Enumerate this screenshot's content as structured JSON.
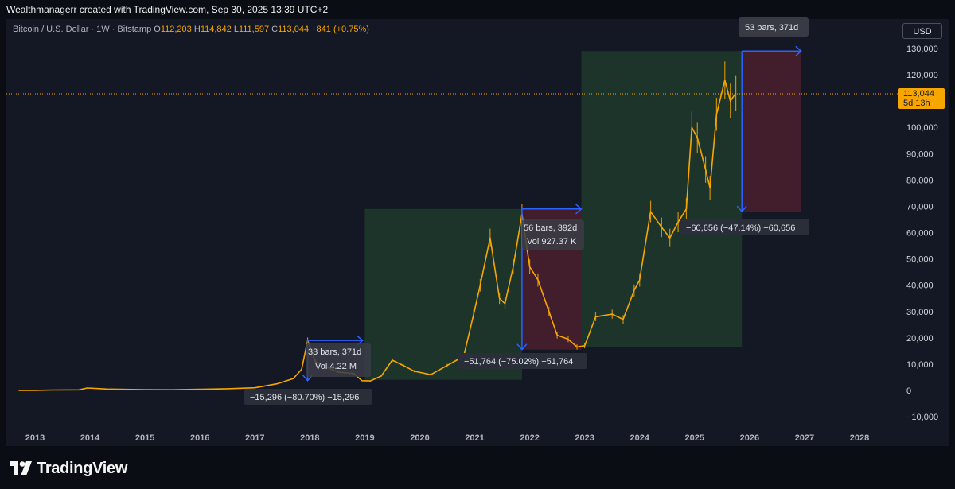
{
  "header": {
    "text": "Wealthmanagerr created with TradingView.com, Sep 30, 2025 13:39 UTC+2"
  },
  "symbol": {
    "name": "Bitcoin / U.S. Dollar · 1W · Bitstamp",
    "open_label": "O",
    "open": "112,203",
    "high_label": "H",
    "high": "114,842",
    "low_label": "L",
    "low": "111,597",
    "close_label": "C",
    "close": "113,044",
    "change": "+841 (+0.75%)"
  },
  "currency_button": "USD",
  "price_tag": {
    "price": "113,044",
    "countdown": "5d 13h"
  },
  "colors": {
    "candle": "#f7a600",
    "profit_zone": "#1e3a2b",
    "loss_zone": "#4a1f2d",
    "measure_line": "#2962ff",
    "background": "#141824"
  },
  "y_axis_labels": [
    "130,000",
    "120,000",
    "110,000",
    "100,000",
    "90,000",
    "80,000",
    "70,000",
    "60,000",
    "50,000",
    "40,000",
    "30,000",
    "20,000",
    "10,000",
    "0",
    "−10,000"
  ],
  "x_axis_labels": [
    "2013",
    "2014",
    "2015",
    "2016",
    "2017",
    "2018",
    "2019",
    "2020",
    "2021",
    "2022",
    "2023",
    "2024",
    "2025",
    "2026",
    "2027",
    "2028"
  ],
  "measurements": {
    "m2018": {
      "bars": "33 bars, 371d",
      "vol": "Vol 4.22 M",
      "change": "−15,296 (−80.70%) −15,296"
    },
    "m2022": {
      "bars": "56 bars, 392d",
      "vol": "Vol 927.37 K",
      "change": "−51,764 (−75.02%) −51,764"
    },
    "m2026": {
      "bars": "53 bars, 371d",
      "change": "−60,656 (−47.14%) −60,656"
    }
  },
  "chart_data": {
    "type": "line",
    "title": "",
    "xlabel": "",
    "ylabel": "",
    "ylim": [
      -10000,
      130000
    ],
    "xlim": [
      2012.7,
      2028.5
    ],
    "series": [
      {
        "x": [
          2012.7,
          2013.0,
          2013.3,
          2013.8,
          2013.95,
          2014.3,
          2015.0,
          2015.5,
          2016.0,
          2016.5,
          2017.0,
          2017.4,
          2017.7,
          2017.85,
          2017.96,
          2018.1,
          2018.3,
          2018.5,
          2018.8,
          2018.95,
          2019.1,
          2019.3,
          2019.5,
          2019.7,
          2019.9,
          2020.2,
          2020.5,
          2020.8,
          2020.98,
          2021.1,
          2021.28,
          2021.45,
          2021.55,
          2021.7,
          2021.86,
          2022.0,
          2022.15,
          2022.35,
          2022.5,
          2022.7,
          2022.86,
          2023.0,
          2023.2,
          2023.5,
          2023.7,
          2023.9,
          2024.0,
          2024.2,
          2024.4,
          2024.55,
          2024.7,
          2024.85,
          2024.95,
          2025.05,
          2025.2,
          2025.28,
          2025.4,
          2025.55,
          2025.65,
          2025.75
        ],
        "values": [
          13,
          20,
          150,
          200,
          900,
          500,
          300,
          250,
          430,
          650,
          1000,
          2500,
          4500,
          8000,
          19000,
          11000,
          9000,
          7000,
          6400,
          3700,
          3600,
          5500,
          11500,
          9500,
          7300,
          6000,
          9500,
          13000,
          29000,
          40000,
          58000,
          35000,
          33000,
          47000,
          67000,
          47000,
          42000,
          30000,
          21000,
          19500,
          16500,
          17000,
          28000,
          29000,
          27000,
          38000,
          42000,
          68000,
          62000,
          58000,
          64000,
          69000,
          100000,
          96000,
          84000,
          77000,
          105000,
          118000,
          110000,
          113044
        ]
      }
    ],
    "price_ohlc": {
      "open": 112203,
      "high": 114842,
      "low": 111597,
      "close": 113044
    },
    "zones": [
      {
        "kind": "profit",
        "x0": 2019.0,
        "x1": 2021.86,
        "y0": 4000,
        "y1": 69000
      },
      {
        "kind": "loss",
        "x0": 2021.86,
        "x1": 2022.94,
        "y0": 15500,
        "y1": 69000
      },
      {
        "kind": "profit",
        "x0": 2022.94,
        "x1": 2025.86,
        "y0": 16500,
        "y1": 129000
      },
      {
        "kind": "loss",
        "x0": 2025.86,
        "x1": 2026.94,
        "y0": 68000,
        "y1": 129000
      }
    ],
    "arrows": [
      {
        "x0": 2017.96,
        "x1": 2018.96,
        "y0": 19000,
        "y1": 3700
      },
      {
        "x0": 2021.86,
        "x1": 2022.94,
        "y0": 69000,
        "y1": 15500
      },
      {
        "x0": 2025.86,
        "x1": 2026.94,
        "y0": 129000,
        "y1": 68000
      }
    ]
  }
}
